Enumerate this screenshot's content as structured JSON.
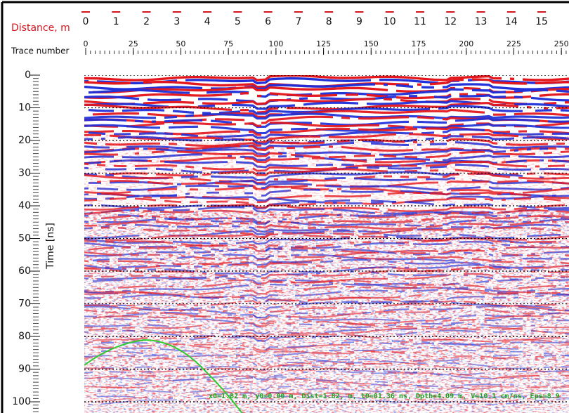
{
  "distance_axis": {
    "label": "Distance, m",
    "ticks": [
      0,
      1,
      2,
      3,
      4,
      5,
      6,
      7,
      8,
      9,
      10,
      11,
      12,
      13,
      14,
      15
    ],
    "range": [
      0,
      15.9
    ]
  },
  "trace_axis": {
    "label": "Trace number",
    "ticks": [
      0,
      25,
      50,
      75,
      100,
      125,
      150,
      175,
      200,
      225,
      250
    ],
    "range": [
      0,
      254
    ]
  },
  "time_axis": {
    "label": "Time [ns]",
    "ticks": [
      0,
      10,
      20,
      30,
      40,
      50,
      60,
      70,
      80,
      90,
      100
    ],
    "range": [
      0,
      103
    ]
  },
  "annotation": "x0=1.82 m,  y0=0.00 m, Dist=1.82, m, t0=81.36 ns, Dpth=4.09 m, V=10.1 cm/ns, Eps=8.9"
}
